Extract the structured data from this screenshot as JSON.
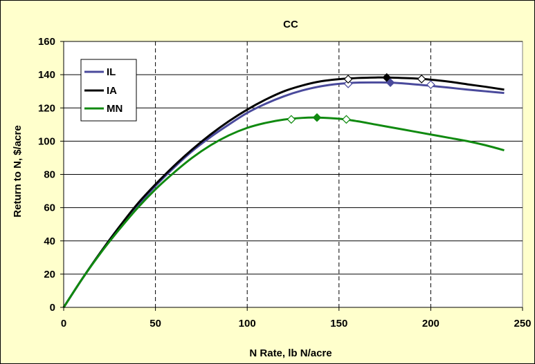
{
  "chart_data": {
    "type": "line",
    "title": "CC",
    "xlabel": "N Rate, lb N/acre",
    "ylabel": "Return to N, $/acre",
    "xlim": [
      0,
      250
    ],
    "ylim": [
      0,
      160
    ],
    "xticks": [
      0,
      50,
      100,
      150,
      200,
      250
    ],
    "yticks": [
      0,
      20,
      40,
      60,
      80,
      100,
      120,
      140,
      160
    ],
    "grid": {
      "x": "dashed",
      "y": "solid"
    },
    "legend_position": "top-left",
    "series": [
      {
        "name": "IL",
        "color": "#4A4A9C",
        "x": [
          0,
          10,
          20,
          30,
          40,
          50,
          60,
          70,
          80,
          90,
          100,
          110,
          120,
          130,
          140,
          150,
          160,
          170,
          178,
          190,
          200,
          210,
          220,
          230,
          240
        ],
        "y": [
          0,
          17,
          33,
          48,
          61,
          73,
          84,
          94,
          102.5,
          110,
          117,
          122.5,
          127,
          130.5,
          133,
          134.5,
          135.2,
          135.3,
          135.2,
          134.3,
          133.3,
          132.2,
          131,
          130,
          129
        ],
        "markers": [
          {
            "x": 155,
            "y": 134.5,
            "style": "open"
          },
          {
            "x": 178,
            "y": 135.2,
            "style": "filled"
          },
          {
            "x": 200,
            "y": 134,
            "style": "open"
          }
        ]
      },
      {
        "name": "IA",
        "color": "#000000",
        "x": [
          0,
          10,
          20,
          30,
          40,
          50,
          60,
          70,
          80,
          90,
          100,
          110,
          120,
          130,
          140,
          150,
          160,
          170,
          176,
          190,
          200,
          210,
          220,
          230,
          240
        ],
        "y": [
          0,
          17,
          33,
          48,
          62,
          74,
          85,
          95,
          104,
          112,
          119,
          125,
          130,
          133.5,
          136,
          137.3,
          138,
          138.3,
          138.3,
          137.8,
          137,
          135.8,
          134.2,
          132.7,
          131
        ],
        "markers": [
          {
            "x": 155,
            "y": 137.3,
            "style": "open"
          },
          {
            "x": 176,
            "y": 138.3,
            "style": "filled"
          },
          {
            "x": 195,
            "y": 137.4,
            "style": "open"
          }
        ]
      },
      {
        "name": "MN",
        "color": "#108A10",
        "x": [
          0,
          10,
          20,
          30,
          40,
          50,
          60,
          70,
          80,
          90,
          100,
          110,
          120,
          130,
          138,
          150,
          160,
          170,
          180,
          190,
          200,
          210,
          220,
          230,
          240
        ],
        "y": [
          0,
          17,
          32.5,
          46.5,
          59.5,
          71,
          81,
          90,
          97.5,
          103.5,
          108,
          111,
          113,
          114,
          114.2,
          113.5,
          112,
          110,
          108,
          106,
          104,
          102,
          100,
          97.5,
          94.5
        ],
        "markers": [
          {
            "x": 124,
            "y": 113.1,
            "style": "open"
          },
          {
            "x": 138,
            "y": 114.2,
            "style": "filled"
          },
          {
            "x": 154,
            "y": 113.1,
            "style": "open"
          }
        ]
      }
    ]
  }
}
